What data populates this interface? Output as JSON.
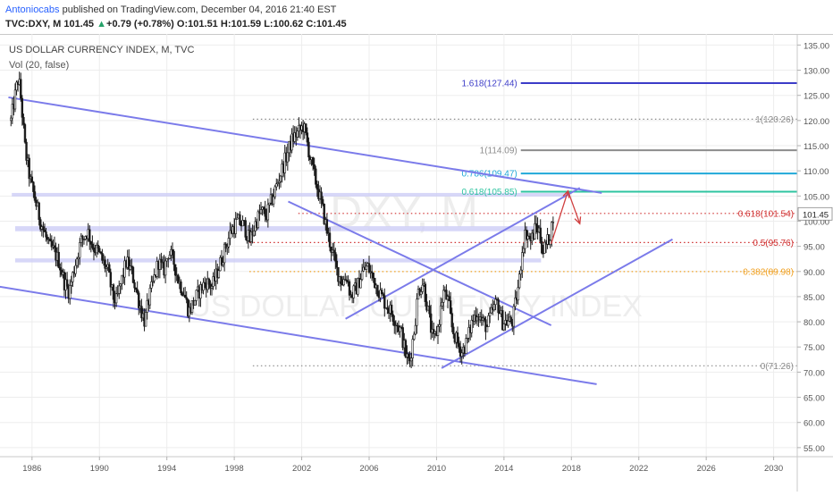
{
  "header": {
    "author": "Antoniocabs",
    "published_text": "published on TradingView.com, December 04, 2016 21:40 EST",
    "symbol_line": "TVC:DXY, M",
    "last": "101.45",
    "arrow": "▲",
    "change": "+0.79 (+0.78%)",
    "o_label": "O:",
    "o_value": "101.51",
    "h_label": "H:",
    "h_value": "101.59",
    "l_label": "L:",
    "l_value": "100.62",
    "c_label": "C:",
    "c_value": "101.45"
  },
  "legend": {
    "title": "US DOLLAR CURRENCY INDEX, M, TVC",
    "volume": "Vol (20, false)"
  },
  "watermark": {
    "line1": "DXY, M",
    "line2": "US DOLLAR CURRENCY INDEX"
  },
  "colors": {
    "candle": "#1a1a1a",
    "channel": "#7b7bea",
    "zone": "#c9c9f5",
    "fib_blue": "#3c3cc8",
    "fib_gray": "#8c8c8c",
    "fib_cyan": "#20a8d8",
    "fib_green": "#2ec4a0",
    "fib_red": "#d03030",
    "fib_orange": "#f0a020",
    "arrow_red": "#d04040",
    "price_tag": "#ffffff"
  },
  "price_tag": "101.45",
  "chart_data": {
    "type": "candlestick",
    "title": "US DOLLAR CURRENCY INDEX, M, TVC",
    "x_ticks": [
      "1986",
      "1990",
      "1994",
      "1998",
      "2002",
      "2006",
      "2010",
      "2014",
      "2018",
      "2022",
      "2026",
      "2030"
    ],
    "x_tick_years": [
      1986,
      1990,
      1994,
      1998,
      2002,
      2006,
      2010,
      2014,
      2018,
      2022,
      2026,
      2030
    ],
    "y_ticks": [
      "55.00",
      "60.00",
      "65.00",
      "70.00",
      "75.00",
      "80.00",
      "85.00",
      "90.00",
      "95.00",
      "100.00",
      "105.00",
      "110.00",
      "115.00",
      "120.00",
      "125.00",
      "130.00",
      "135.00"
    ],
    "y_tick_values": [
      55,
      60,
      65,
      70,
      75,
      80,
      85,
      90,
      95,
      100,
      105,
      110,
      115,
      120,
      125,
      130,
      135
    ],
    "xlim": [
      1984.1,
      2031.4
    ],
    "ylim": [
      53.2,
      137.2
    ],
    "series_points": [
      [
        1984.75,
        120
      ],
      [
        1985.1,
        127
      ],
      [
        1985.2,
        128.5
      ],
      [
        1985.35,
        124
      ],
      [
        1985.6,
        114
      ],
      [
        1985.9,
        108
      ],
      [
        1986.2,
        104
      ],
      [
        1986.5,
        100
      ],
      [
        1986.8,
        97
      ],
      [
        1987.0,
        95
      ],
      [
        1987.3,
        94
      ],
      [
        1987.6,
        92
      ],
      [
        1987.9,
        88
      ],
      [
        1988.2,
        86
      ],
      [
        1988.6,
        92
      ],
      [
        1988.9,
        96
      ],
      [
        1989.3,
        98
      ],
      [
        1989.6,
        95
      ],
      [
        1989.9,
        94
      ],
      [
        1990.2,
        92
      ],
      [
        1990.5,
        90
      ],
      [
        1990.8,
        85
      ],
      [
        1991.0,
        84
      ],
      [
        1991.3,
        88
      ],
      [
        1991.6,
        92
      ],
      [
        1991.9,
        90
      ],
      [
        1992.2,
        86
      ],
      [
        1992.5,
        82
      ],
      [
        1992.7,
        80
      ],
      [
        1992.9,
        84
      ],
      [
        1993.2,
        88
      ],
      [
        1993.5,
        92
      ],
      [
        1993.8,
        90
      ],
      [
        1994.1,
        94
      ],
      [
        1994.4,
        92
      ],
      [
        1994.7,
        88
      ],
      [
        1995.0,
        86
      ],
      [
        1995.3,
        82
      ],
      [
        1995.6,
        84
      ],
      [
        1995.9,
        86
      ],
      [
        1996.3,
        88
      ],
      [
        1996.7,
        87
      ],
      [
        1997.0,
        90
      ],
      [
        1997.4,
        94
      ],
      [
        1997.8,
        98
      ],
      [
        1998.2,
        100
      ],
      [
        1998.6,
        99
      ],
      [
        1998.9,
        96
      ],
      [
        1999.3,
        100
      ],
      [
        1999.6,
        102
      ],
      [
        1999.9,
        101
      ],
      [
        2000.2,
        104
      ],
      [
        2000.5,
        107
      ],
      [
        2000.8,
        110
      ],
      [
        2001.1,
        113
      ],
      [
        2001.4,
        116
      ],
      [
        2001.6,
        117
      ],
      [
        2001.9,
        118
      ],
      [
        2002.1,
        119
      ],
      [
        2002.3,
        116
      ],
      [
        2002.6,
        111
      ],
      [
        2002.9,
        107
      ],
      [
        2003.2,
        103
      ],
      [
        2003.5,
        98
      ],
      [
        2003.8,
        94
      ],
      [
        2004.1,
        90
      ],
      [
        2004.4,
        88
      ],
      [
        2004.7,
        89
      ],
      [
        2004.9,
        85
      ],
      [
        2005.3,
        87
      ],
      [
        2005.6,
        90
      ],
      [
        2005.9,
        91
      ],
      [
        2006.2,
        89
      ],
      [
        2006.6,
        86
      ],
      [
        2006.9,
        84
      ],
      [
        2007.3,
        82
      ],
      [
        2007.6,
        80
      ],
      [
        2007.9,
        78
      ],
      [
        2008.2,
        73
      ],
      [
        2008.4,
        72
      ],
      [
        2008.7,
        79
      ],
      [
        2008.9,
        86
      ],
      [
        2009.2,
        88
      ],
      [
        2009.5,
        82
      ],
      [
        2009.8,
        76
      ],
      [
        2010.1,
        79
      ],
      [
        2010.4,
        86
      ],
      [
        2010.7,
        84
      ],
      [
        2010.9,
        79
      ],
      [
        2011.2,
        76
      ],
      [
        2011.5,
        74
      ],
      [
        2011.8,
        76
      ],
      [
        2012.1,
        80
      ],
      [
        2012.4,
        82
      ],
      [
        2012.7,
        80
      ],
      [
        2013.0,
        79
      ],
      [
        2013.3,
        82
      ],
      [
        2013.6,
        84
      ],
      [
        2013.9,
        80
      ],
      [
        2014.2,
        80
      ],
      [
        2014.5,
        80
      ],
      [
        2014.7,
        84
      ],
      [
        2014.9,
        88
      ],
      [
        2015.1,
        95
      ],
      [
        2015.3,
        98
      ],
      [
        2015.6,
        96
      ],
      [
        2015.9,
        99
      ],
      [
        2016.1,
        98
      ],
      [
        2016.3,
        94
      ],
      [
        2016.6,
        96
      ],
      [
        2016.8,
        98
      ],
      [
        2016.92,
        101.45
      ]
    ],
    "channels": [
      {
        "name": "upper-descending",
        "from": [
          1984.6,
          124.6
        ],
        "to": [
          2019.8,
          105.6
        ]
      },
      {
        "name": "lower-descending",
        "from": [
          1983.5,
          87.3
        ],
        "to": [
          2019.5,
          67.6
        ]
      },
      {
        "name": "mid-descending",
        "from": [
          2001.2,
          103.9
        ],
        "to": [
          2016.8,
          79.3
        ]
      },
      {
        "name": "rising-upper",
        "from": [
          2004.6,
          80.6
        ],
        "to": [
          2018.5,
          106.6
        ]
      },
      {
        "name": "rising-lower",
        "from": [
          2010.3,
          70.8
        ],
        "to": [
          2024.0,
          96.4
        ]
      }
    ],
    "zones": [
      {
        "name": "zone-top",
        "from_x": 1984.8,
        "to_x": 2017.8,
        "y_low": 104.9,
        "y_high": 105.6
      },
      {
        "name": "zone-mid",
        "from_x": 1985.0,
        "to_x": 2016.2,
        "y_low": 98.0,
        "y_high": 99.0
      },
      {
        "name": "zone-low",
        "from_x": 1985.0,
        "to_x": 2016.2,
        "y_low": 91.8,
        "y_high": 92.6
      }
    ],
    "fib_levels": [
      {
        "label": "1.618(127.44)",
        "value": 127.44,
        "from_x": 2015.0,
        "style": "solid",
        "color_key": "fib_blue"
      },
      {
        "label": "1(120.26)",
        "value": 120.26,
        "from_x": 1999.1,
        "style": "dotted",
        "color_key": "fib_gray"
      },
      {
        "label": "1(114.09)",
        "value": 114.09,
        "from_x": 2015.0,
        "style": "solid",
        "color_key": "fib_gray"
      },
      {
        "label": "0.786(109.47)",
        "value": 109.47,
        "from_x": 2015.0,
        "style": "solid",
        "color_key": "fib_cyan"
      },
      {
        "label": "0.618(105.85)",
        "value": 105.85,
        "from_x": 2015.0,
        "style": "solid",
        "color_key": "fib_green"
      },
      {
        "label": "0.618(101.54)",
        "value": 101.54,
        "from_x": 2001.8,
        "style": "dotted",
        "color_key": "fib_red"
      },
      {
        "label": "0.5(95.76)",
        "value": 95.76,
        "from_x": 1998.9,
        "style": "dotted",
        "color_key": "fib_red"
      },
      {
        "label": "0.382(89.98)",
        "value": 89.98,
        "from_x": 1998.9,
        "style": "dotted",
        "color_key": "fib_orange"
      },
      {
        "label": "0(71.26)",
        "value": 71.26,
        "from_x": 1999.1,
        "style": "dotted",
        "color_key": "fib_gray"
      }
    ],
    "projection_arrows": [
      {
        "from": [
          2016.8,
          95.5
        ],
        "to": [
          2017.8,
          106.0
        ]
      },
      {
        "from": [
          2017.8,
          106.0
        ],
        "to": [
          2018.5,
          99.5
        ]
      }
    ],
    "last_price": 101.45
  }
}
